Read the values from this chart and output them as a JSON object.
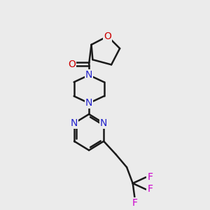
{
  "background_color": "#ebebeb",
  "bond_color": "#1a1a1a",
  "nitrogen_color": "#2222cc",
  "oxygen_color": "#cc0000",
  "fluorine_color": "#cc00cc",
  "line_width": 1.8,
  "figsize": [
    3.0,
    3.0
  ],
  "dpi": 100,
  "xlim": [
    0,
    10
  ],
  "ylim": [
    0,
    10
  ]
}
